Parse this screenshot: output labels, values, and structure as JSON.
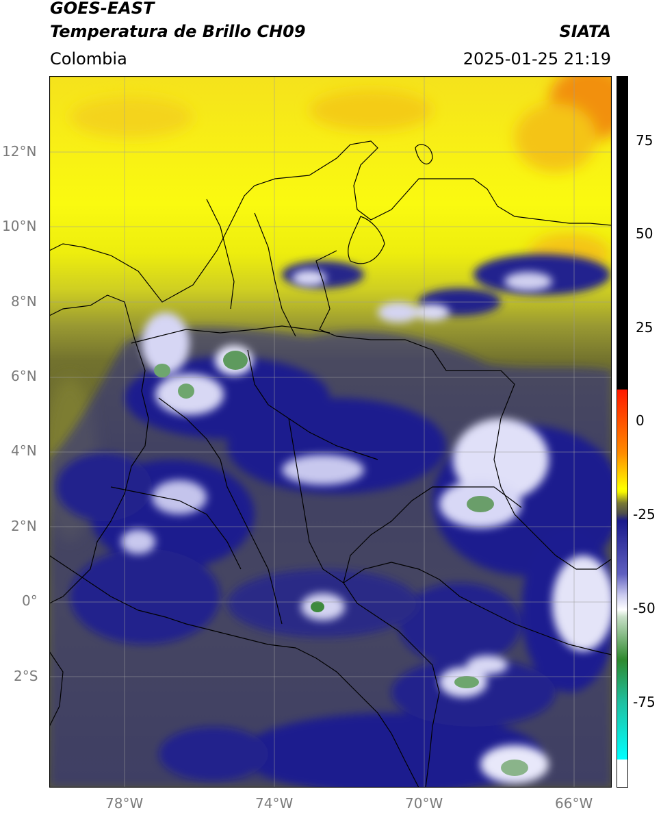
{
  "header": {
    "satellite": "GOES-EAST",
    "product": "Temperatura de Brillo CH09",
    "region": "Colombia",
    "institution": "SIATA",
    "datetime": "2025-01-25 21:19"
  },
  "map": {
    "lon_range": [
      -80,
      -65
    ],
    "lat_range": [
      -5,
      14
    ],
    "lon_ticks": [
      "78°W",
      "74°W",
      "70°W",
      "66°W"
    ],
    "lat_ticks": [
      "12°N",
      "10°N",
      "8°N",
      "6°N",
      "4°N",
      "2°N",
      "0°",
      "2°S"
    ],
    "gridlines": true
  },
  "colorbar": {
    "ticks": [
      "75",
      "50",
      "25",
      "0",
      "-25",
      "-50",
      "-75"
    ],
    "range": [
      -95,
      90
    ],
    "colors": {
      "black": "#000000",
      "red": "#ff1a00",
      "orange": "#ff8c00",
      "yellow": "#ffff00",
      "olive": "#7a7a33",
      "gray": "#4d4d4d",
      "navy": "#1a1a8c",
      "lavender": "#ccccf0",
      "white": "#ffffff",
      "green": "#2e8a2e",
      "teal": "#20c0a0",
      "cyan": "#00ffff"
    }
  }
}
